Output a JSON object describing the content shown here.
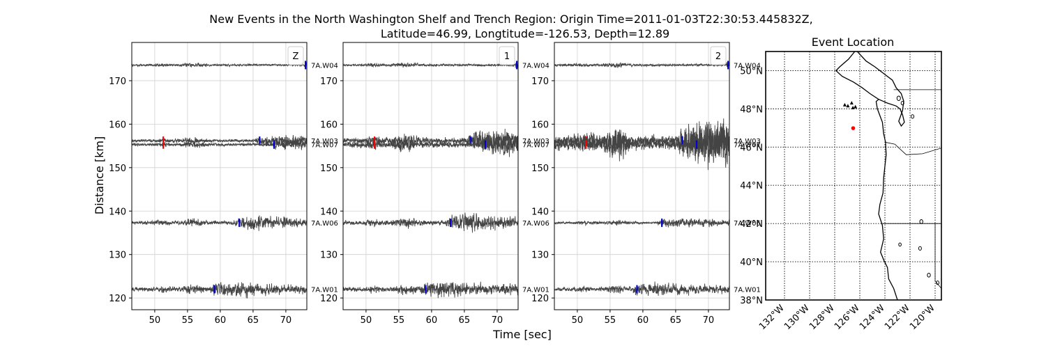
{
  "title_line1": "New Events in the North Washington Shelf and Trench Region: Origin Time=2011-01-03T22:30:53.445832Z,",
  "title_line2": "Latitude=46.99, Longtitude=-126.53, Depth=12.89",
  "xlabel": "Time [sec]",
  "ylabel": "Distance [km]",
  "map_title": "Event Location",
  "chart_data": [
    {
      "type": "line",
      "panel": "Z",
      "x_range": [
        46.5,
        73.2
      ],
      "ylim": [
        117.3,
        178.8
      ],
      "xticks": [
        50,
        55,
        60,
        65,
        70
      ],
      "yticks": [
        120,
        130,
        140,
        150,
        160,
        170
      ],
      "grid": true,
      "legend": "top-right",
      "legend_label": "Z",
      "traces": [
        {
          "station": "7A.W04",
          "distance_km": 173.6,
          "amplitude_km": 1.2,
          "picks": [
            {
              "phase": "S",
              "time": 73.0
            }
          ]
        },
        {
          "station": "7A.W03",
          "distance_km": 156.2,
          "amplitude_km": 1.7,
          "picks": [
            {
              "phase": "P",
              "time": 51.3
            },
            {
              "phase": "S",
              "time": 66.0
            }
          ]
        },
        {
          "station": "7A.W07",
          "distance_km": 155.3,
          "amplitude_km": 1.7,
          "picks": [
            {
              "phase": "P",
              "time": 51.3
            },
            {
              "phase": "S",
              "time": 68.2
            }
          ]
        },
        {
          "station": "7A.W06",
          "distance_km": 137.3,
          "amplitude_km": 2.2,
          "picks": [
            {
              "phase": "S",
              "time": 62.9
            }
          ]
        },
        {
          "station": "7A.W01",
          "distance_km": 122.0,
          "amplitude_km": 2.3,
          "picks": [
            {
              "phase": "S",
              "time": 59.1
            }
          ]
        }
      ]
    },
    {
      "type": "line",
      "panel": "1",
      "x_range": [
        46.5,
        73.2
      ],
      "ylim": [
        117.3,
        178.8
      ],
      "xticks": [
        50,
        55,
        60,
        65,
        70
      ],
      "yticks": [
        120,
        130,
        140,
        150,
        160,
        170
      ],
      "grid": true,
      "legend": "top-right",
      "legend_label": "1",
      "traces": [
        {
          "station": "7A.W04",
          "distance_km": 173.6,
          "amplitude_km": 1.4,
          "picks": [
            {
              "phase": "S",
              "time": 73.0
            }
          ]
        },
        {
          "station": "7A.W03",
          "distance_km": 156.2,
          "amplitude_km": 3.5,
          "picks": [
            {
              "phase": "P",
              "time": 51.3
            },
            {
              "phase": "S",
              "time": 66.0
            }
          ]
        },
        {
          "station": "7A.W07",
          "distance_km": 155.3,
          "amplitude_km": 3.5,
          "picks": [
            {
              "phase": "P",
              "time": 51.3
            },
            {
              "phase": "S",
              "time": 68.2
            }
          ]
        },
        {
          "station": "7A.W06",
          "distance_km": 137.3,
          "amplitude_km": 2.7,
          "picks": [
            {
              "phase": "S",
              "time": 62.9
            }
          ]
        },
        {
          "station": "7A.W01",
          "distance_km": 122.0,
          "amplitude_km": 2.6,
          "picks": [
            {
              "phase": "S",
              "time": 59.1
            }
          ]
        }
      ]
    },
    {
      "type": "line",
      "panel": "2",
      "x_range": [
        46.5,
        73.2
      ],
      "ylim": [
        117.3,
        178.8
      ],
      "xticks": [
        50,
        55,
        60,
        65,
        70
      ],
      "yticks": [
        120,
        130,
        140,
        150,
        160,
        170
      ],
      "grid": true,
      "legend": "top-right",
      "legend_label": "2",
      "traces": [
        {
          "station": "7A.W04",
          "distance_km": 173.6,
          "amplitude_km": 1.4,
          "picks": [
            {
              "phase": "S",
              "time": 73.0
            }
          ]
        },
        {
          "station": "7A.W03",
          "distance_km": 156.2,
          "amplitude_km": 6.5,
          "picks": [
            {
              "phase": "P",
              "time": 51.3
            },
            {
              "phase": "S",
              "time": 66.0
            }
          ]
        },
        {
          "station": "7A.W07",
          "distance_km": 155.3,
          "amplitude_km": 6.5,
          "picks": [
            {
              "phase": "P",
              "time": 51.3
            },
            {
              "phase": "S",
              "time": 68.2
            }
          ]
        },
        {
          "station": "7A.W06",
          "distance_km": 137.3,
          "amplitude_km": 1.4,
          "picks": [
            {
              "phase": "S",
              "time": 62.9
            }
          ]
        },
        {
          "station": "7A.W01",
          "distance_km": 122.0,
          "amplitude_km": 2.1,
          "picks": [
            {
              "phase": "S",
              "time": 59.1
            }
          ]
        }
      ]
    }
  ],
  "map": {
    "lon_range": [
      -133.5,
      -119.5
    ],
    "lat_range": [
      38.0,
      51.0
    ],
    "lon_ticks": [
      -132,
      -130,
      -128,
      -126,
      -124,
      -122,
      -120
    ],
    "lon_tick_labels": [
      "132°W",
      "130°W",
      "128°W",
      "126°W",
      "124°W",
      "122°W",
      "120°W"
    ],
    "lat_ticks": [
      38,
      40,
      42,
      44,
      46,
      48,
      50
    ],
    "lat_tick_labels": [
      "38°N",
      "40°N",
      "42°N",
      "44°N",
      "46°N",
      "48°N",
      "50°N"
    ],
    "event": {
      "lon": -126.53,
      "lat": 46.99
    },
    "stations": [
      {
        "lon": -127.2,
        "lat": 48.2
      },
      {
        "lon": -126.95,
        "lat": 48.15
      },
      {
        "lon": -126.65,
        "lat": 48.3
      },
      {
        "lon": -126.55,
        "lat": 48.05
      },
      {
        "lon": -126.35,
        "lat": 48.1
      }
    ]
  },
  "colors": {
    "trace": "#444444",
    "grid": "#d0d0d0",
    "p_pick": "#ff0000",
    "s_pick": "#0000cc",
    "event_marker": "#ff0000",
    "station_marker": "#000000"
  }
}
